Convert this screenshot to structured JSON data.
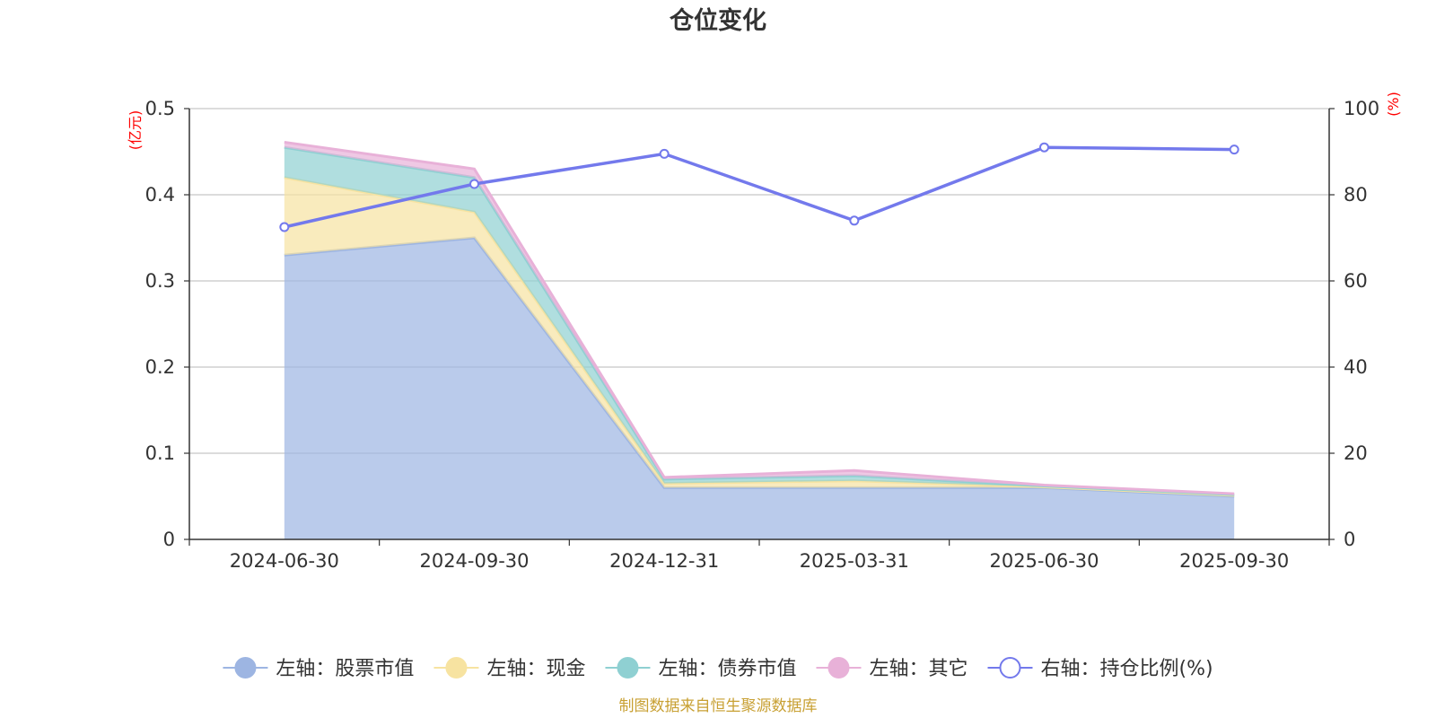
{
  "chart_data": {
    "type": "area",
    "title": "仓位变化",
    "categories": [
      "2024-06-30",
      "2024-09-30",
      "2024-12-31",
      "2025-03-31",
      "2025-06-30",
      "2025-09-30"
    ],
    "left_axis": {
      "unit": "(亿元)",
      "ticks": [
        "0",
        "0.1",
        "0.2",
        "0.3",
        "0.4",
        "0.5"
      ],
      "ylim": [
        0,
        0.5
      ]
    },
    "right_axis": {
      "unit": "(%)",
      "ticks": [
        "0",
        "20",
        "40",
        "60",
        "80",
        "100"
      ],
      "ylim": [
        0,
        100
      ]
    },
    "stacked_series": [
      {
        "name": "左轴：股票市值",
        "color": "#9db5e2",
        "values": [
          0.33,
          0.35,
          0.06,
          0.06,
          0.06,
          0.05
        ]
      },
      {
        "name": "左轴：现金",
        "color": "#f7e3a1",
        "values": [
          0.09,
          0.03,
          0.005,
          0.008,
          0.001,
          0.001
        ]
      },
      {
        "name": "左轴：债券市值",
        "color": "#8fd0d2",
        "values": [
          0.035,
          0.04,
          0.005,
          0.006,
          0.001,
          0.001
        ]
      },
      {
        "name": "左轴：其它",
        "color": "#e8b1d8",
        "values": [
          0.006,
          0.01,
          0.002,
          0.006,
          0.001,
          0.001
        ]
      }
    ],
    "line_series": {
      "name": "右轴：持仓比例(%)",
      "color": "#7379ec",
      "values": [
        72.5,
        82.5,
        89.5,
        74,
        91,
        90.5
      ]
    },
    "source": "制图数据来自恒生聚源数据库"
  }
}
